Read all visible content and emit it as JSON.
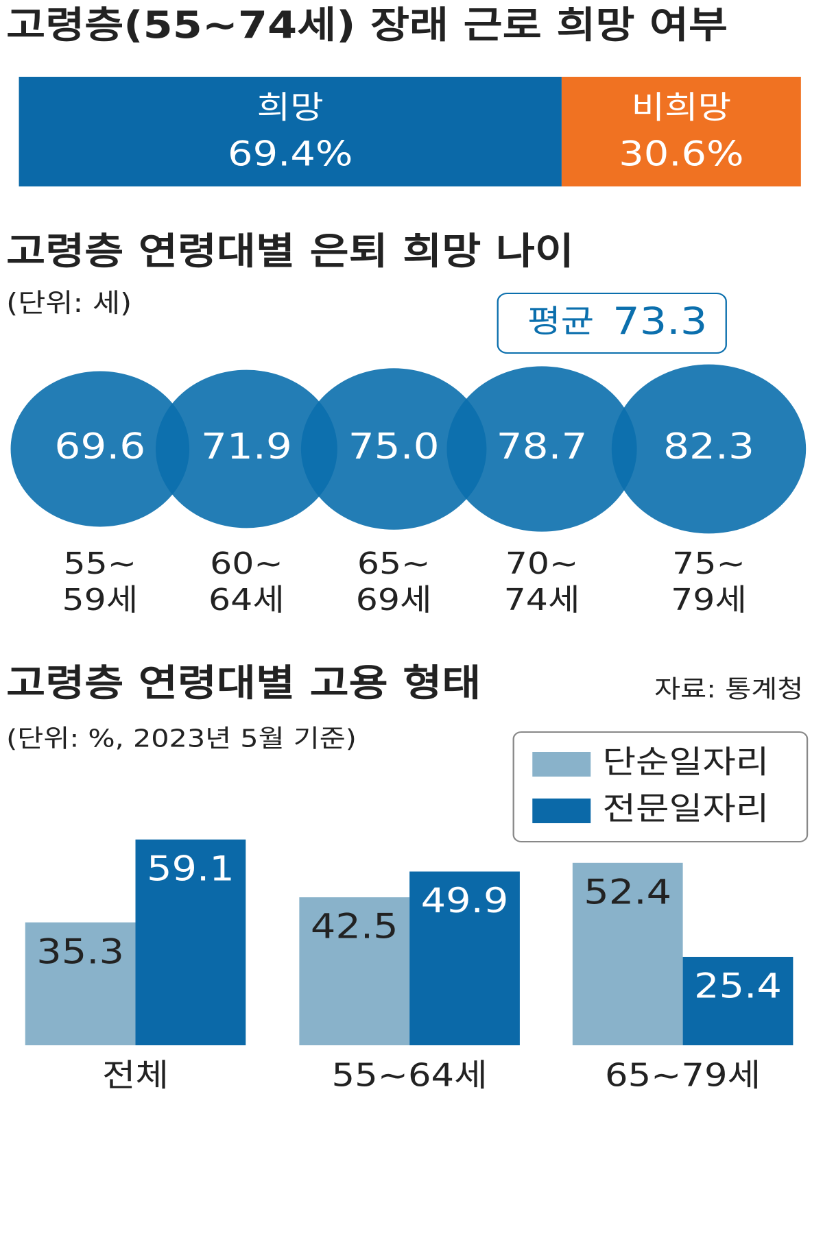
{
  "chart_data": [
    {
      "type": "stacked-bar",
      "title": "고령층(55~74세) 장래 근로 희망 여부",
      "categories": [
        "희망",
        "비희망"
      ],
      "values": [
        69.4,
        30.6
      ],
      "value_labels": [
        "69.4%",
        "30.6%"
      ],
      "colors": [
        "#0b69a8",
        "#f07222"
      ]
    },
    {
      "type": "bubble",
      "title": "고령층 연령대별 은퇴 희망 나이",
      "subtitle": "(단위: 세)",
      "annotation": {
        "label": "평균",
        "value": 73.3
      },
      "categories": [
        "55~\n59세",
        "60~\n64세",
        "65~\n69세",
        "70~\n74세",
        "75~\n79세"
      ],
      "values": [
        69.6,
        71.9,
        75.0,
        78.7,
        82.3
      ],
      "value_labels": [
        "69.6",
        "71.9",
        "75.0",
        "78.7",
        "82.3"
      ],
      "color": "#0b6fad"
    },
    {
      "type": "grouped-bar",
      "title": "고령층 연령대별 고용 형태",
      "source": "자료: 통계청",
      "subtitle": "(단위: %, 2023년 5월 기준)",
      "categories": [
        "전체",
        "55~64세",
        "65~79세"
      ],
      "series": [
        {
          "name": "단순일자리",
          "color": "#89b2ca",
          "values": [
            35.3,
            42.5,
            52.4
          ]
        },
        {
          "name": "전문일자리",
          "color": "#0b69a8",
          "values": [
            59.1,
            49.9,
            25.4
          ]
        }
      ]
    }
  ]
}
